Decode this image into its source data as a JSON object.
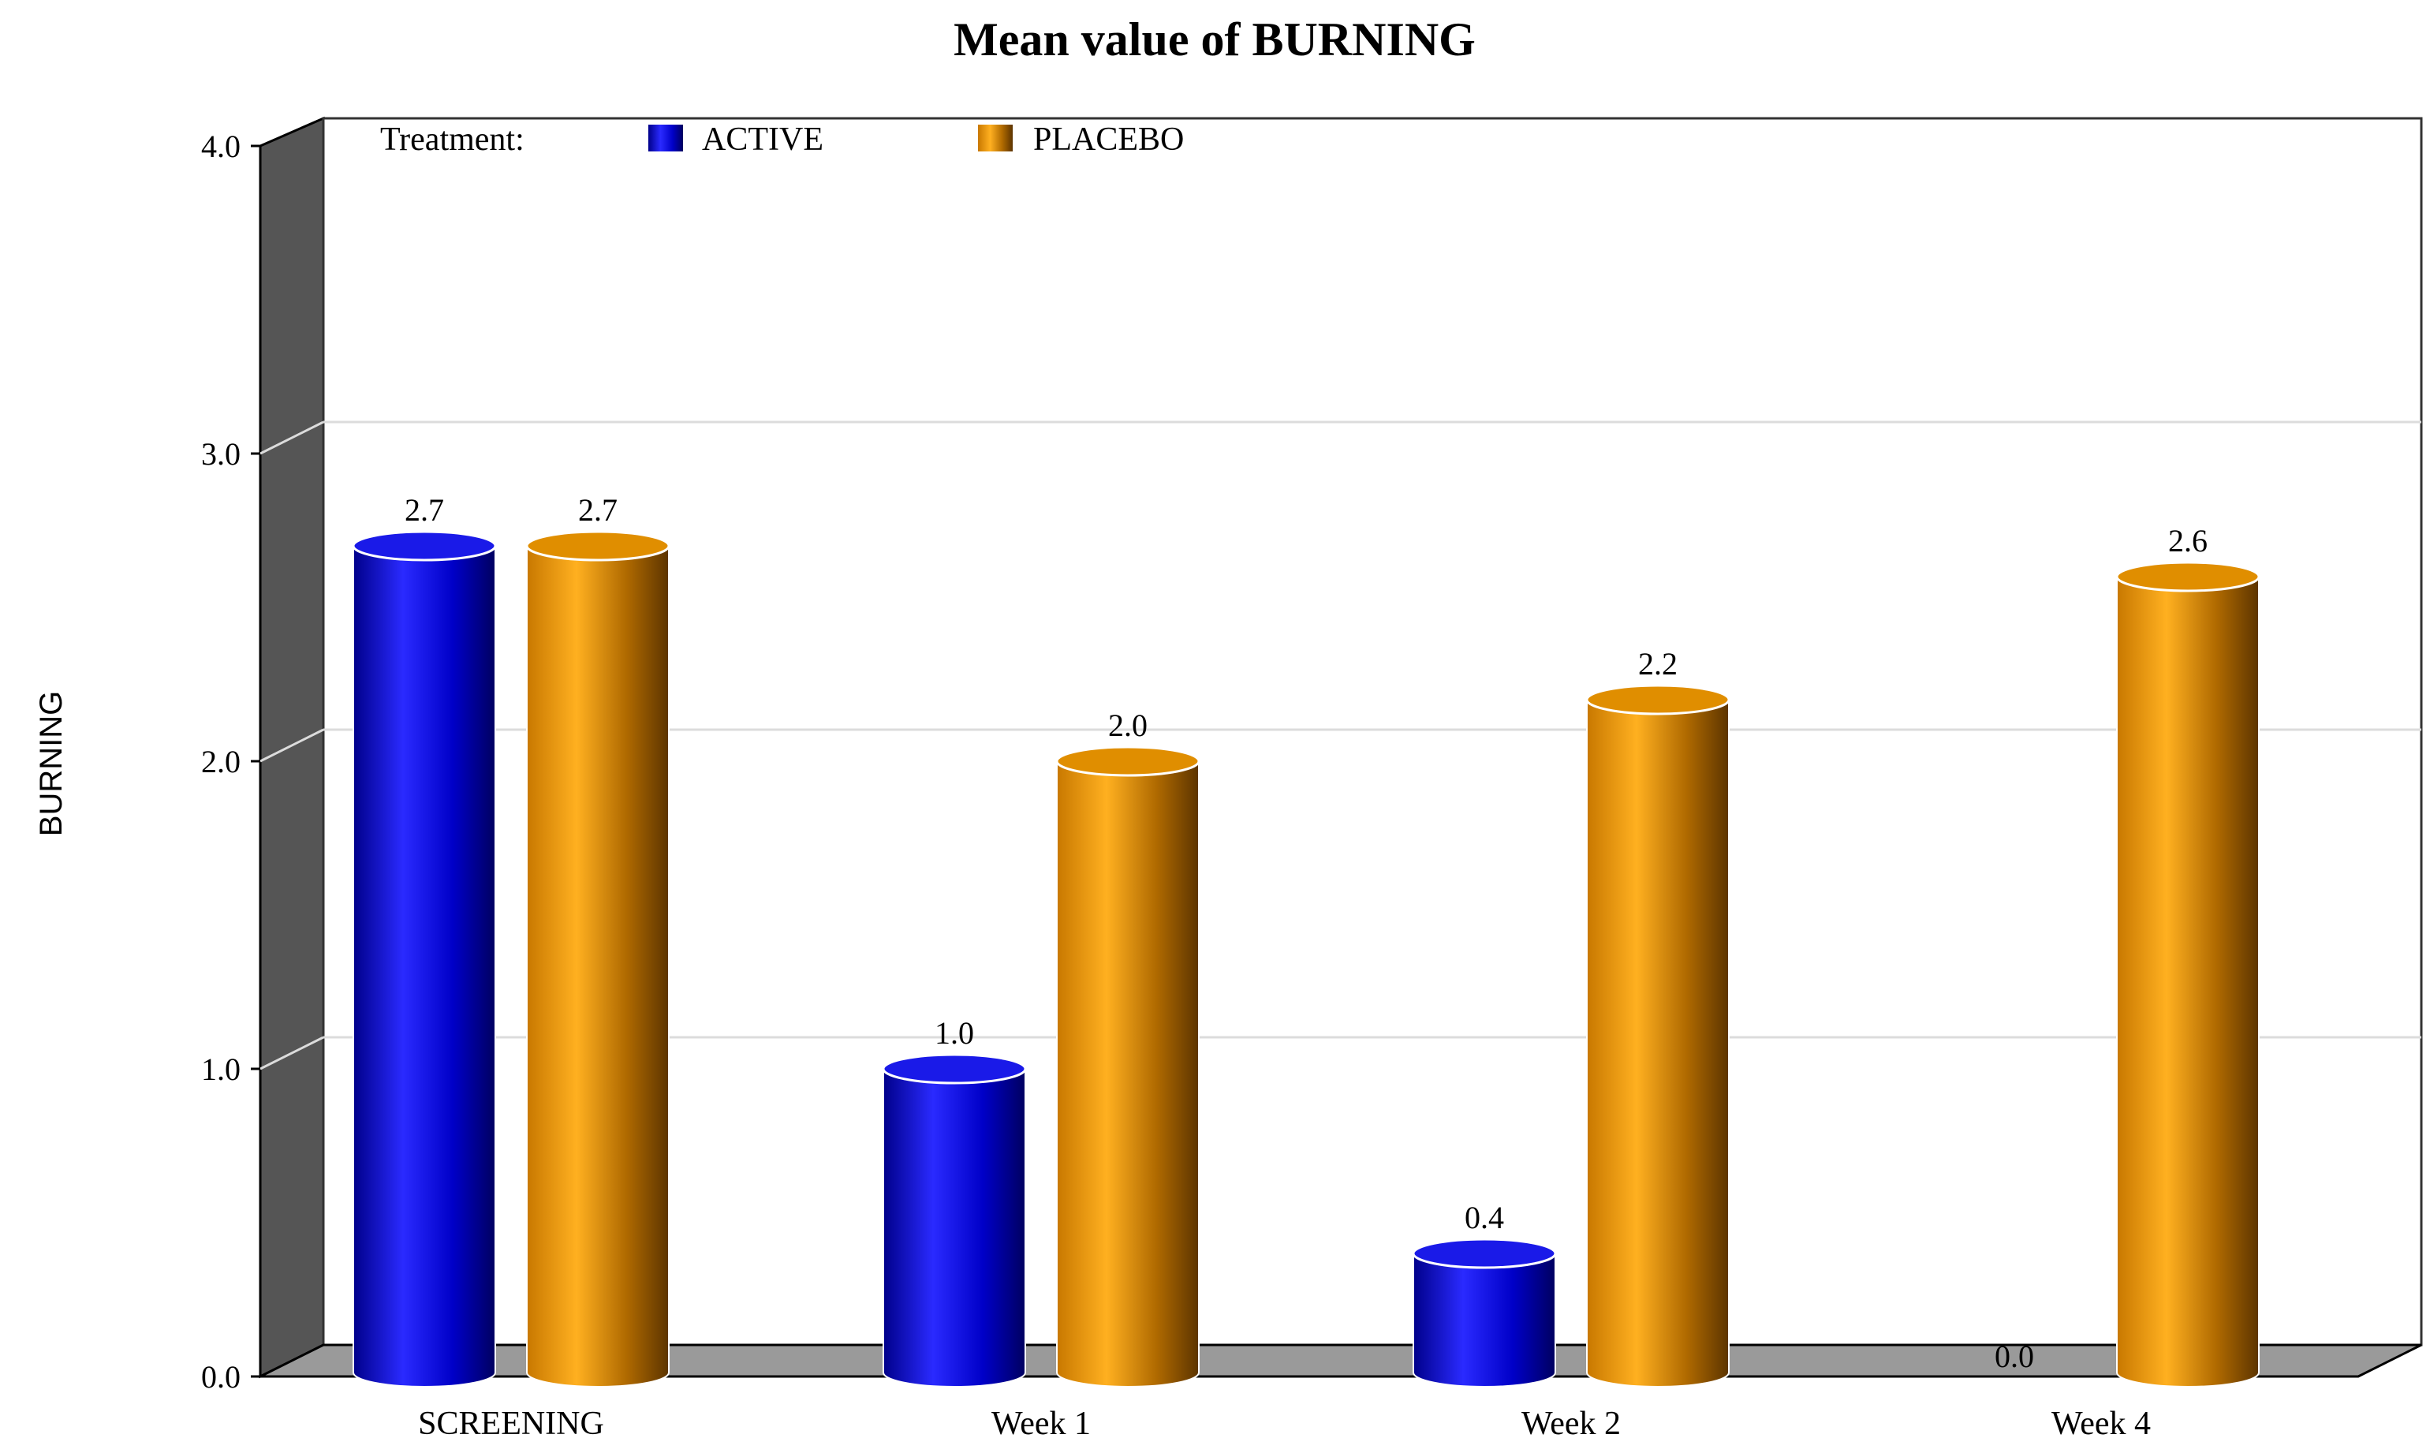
{
  "chart_data": {
    "type": "bar",
    "title": "Mean value of BURNING",
    "ylabel": "BURNING",
    "xlabel": "",
    "categories": [
      "SCREENING",
      "Week 1",
      "Week 2",
      "Week 4"
    ],
    "ylim": [
      0,
      4
    ],
    "yticks": [
      "0.0",
      "1.0",
      "2.0",
      "3.0",
      "4.0"
    ],
    "grid": true,
    "legend": {
      "title": "Treatment:",
      "placement": "top-left",
      "entries": [
        "ACTIVE",
        "PLACEBO"
      ]
    },
    "series": [
      {
        "name": "ACTIVE",
        "color": "#1010e0",
        "values": [
          2.7,
          1.0,
          0.4,
          0.0
        ],
        "labels": [
          "2.7",
          "1.0",
          "0.4",
          "0.0"
        ]
      },
      {
        "name": "PLACEBO",
        "color": "#f0a000",
        "values": [
          2.7,
          2.0,
          2.2,
          2.6
        ],
        "labels": [
          "2.7",
          "2.0",
          "2.2",
          "2.6"
        ]
      }
    ]
  }
}
